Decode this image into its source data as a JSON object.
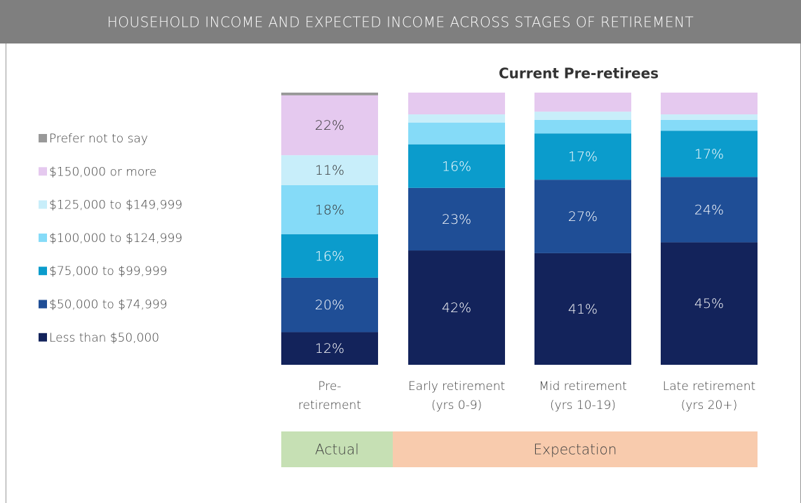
{
  "chart_data": {
    "type": "stacked_bar",
    "header": "HOUSEHOLD INCOME AND EXPECTED INCOME ACROSS STAGES OF RETIREMENT",
    "title": "Current Pre-retirees",
    "categories": [
      [
        "Pre-",
        "retirement"
      ],
      [
        "Early retirement",
        "(yrs 0-9)"
      ],
      [
        "Mid retirement",
        "(yrs 10-19)"
      ],
      [
        "Late retirement",
        "(yrs 20+)"
      ]
    ],
    "ylim": [
      0,
      100
    ],
    "series": [
      {
        "name": "Less than $50,000",
        "color": "#13235b",
        "label_color": "#ffffff",
        "values": [
          12,
          42,
          41,
          45
        ],
        "value_labels": [
          "12%",
          "42%",
          "41%",
          "45%"
        ]
      },
      {
        "name": "$50,000 to $74,999",
        "color": "#1f4e96",
        "label_color": "#ffffff",
        "values": [
          20,
          23,
          27,
          24
        ],
        "value_labels": [
          "20%",
          "23%",
          "27%",
          "24%"
        ]
      },
      {
        "name": "$75,000 to $99,999",
        "color": "#0b9ccc",
        "label_color": "#ffffff",
        "values": [
          16,
          16,
          17,
          17
        ],
        "value_labels": [
          "16%",
          "16%",
          "17%",
          "17%"
        ]
      },
      {
        "name": "$100,000 to $124,999",
        "color": "#85dbf8",
        "label_color": "#333333",
        "values": [
          18,
          8,
          5,
          4
        ],
        "value_labels": [
          "18%",
          null,
          null,
          null
        ]
      },
      {
        "name": "$125,000 to $149,999",
        "color": "#c8eefa",
        "label_color": "#333333",
        "values": [
          11,
          3,
          3,
          2
        ],
        "value_labels": [
          "11%",
          null,
          null,
          null
        ]
      },
      {
        "name": "$150,000 or more",
        "color": "#e5c9ef",
        "label_color": "#333333",
        "values": [
          22,
          8,
          7,
          8
        ],
        "value_labels": [
          "22%",
          null,
          null,
          null
        ]
      },
      {
        "name": "Prefer not to say",
        "color": "#999999",
        "label_color": "#333333",
        "values": [
          1,
          0,
          0,
          0
        ],
        "value_labels": [
          null,
          null,
          null,
          null
        ]
      }
    ],
    "groups": [
      {
        "label": "Actual",
        "color": "#c6e0b4"
      },
      {
        "label": "Expectation",
        "color": "#f8cbad"
      }
    ]
  }
}
